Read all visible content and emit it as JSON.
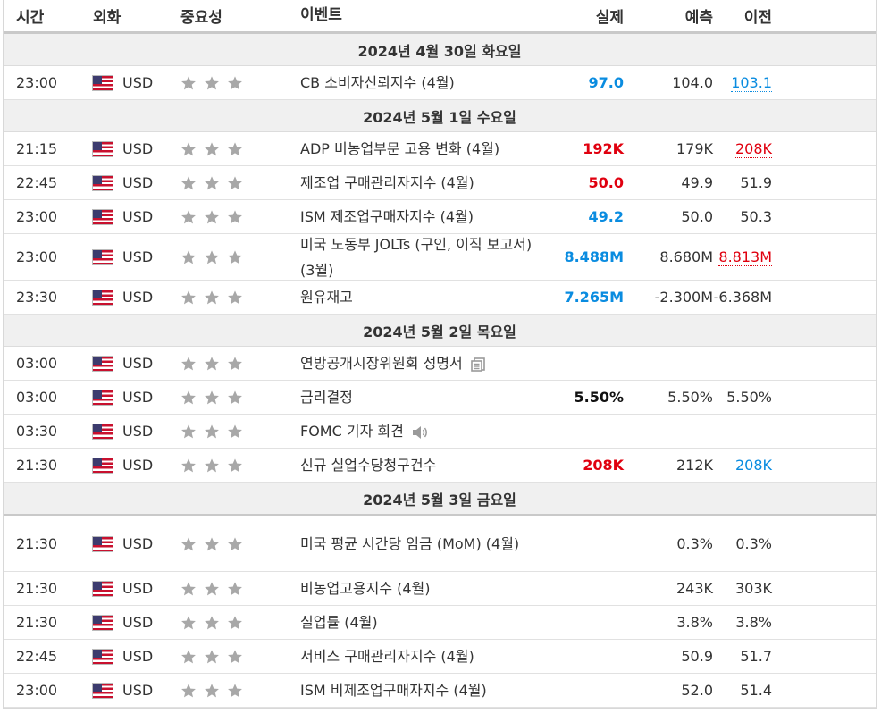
{
  "header": {
    "time": "시간",
    "currency": "외화",
    "importance": "중요성",
    "event": "이벤트",
    "actual": "실제",
    "forecast": "예측",
    "previous": "이전"
  },
  "colors": {
    "positive": "#0a8ce0",
    "negative": "#e0000f",
    "star": "#a8a8a8"
  },
  "groups": [
    {
      "date": "2024년 4월 30일 화요일",
      "events": [
        {
          "time": "23:00",
          "currency": "USD",
          "stars": 3,
          "event": "CB 소비자신뢰지수 (4월)",
          "actual": "97.0",
          "actual_style": "blue",
          "forecast": "104.0",
          "previous": "103.1",
          "previous_style": "prev-blue",
          "icon": ""
        }
      ]
    },
    {
      "date": "2024년 5월 1일 수요일",
      "events": [
        {
          "time": "21:15",
          "currency": "USD",
          "stars": 3,
          "event": "ADP 비농업부문 고용 변화 (4월)",
          "actual": "192K",
          "actual_style": "red",
          "forecast": "179K",
          "previous": "208K",
          "previous_style": "prev-red",
          "icon": ""
        },
        {
          "time": "22:45",
          "currency": "USD",
          "stars": 3,
          "event": "제조업 구매관리자지수 (4월)",
          "actual": "50.0",
          "actual_style": "red",
          "forecast": "49.9",
          "previous": "51.9",
          "previous_style": "",
          "icon": ""
        },
        {
          "time": "23:00",
          "currency": "USD",
          "stars": 3,
          "event": "ISM 제조업구매자지수 (4월)",
          "actual": "49.2",
          "actual_style": "blue",
          "forecast": "50.0",
          "previous": "50.3",
          "previous_style": "",
          "icon": ""
        },
        {
          "time": "23:00",
          "currency": "USD",
          "stars": 3,
          "event": "미국 노동부 JOLTs (구인, 이직 보고서) (3월)",
          "actual": "8.488M",
          "actual_style": "blue",
          "forecast": "8.680M",
          "previous": "8.813M",
          "previous_style": "prev-red",
          "icon": ""
        },
        {
          "time": "23:30",
          "currency": "USD",
          "stars": 3,
          "event": "원유재고",
          "actual": "7.265M",
          "actual_style": "blue",
          "forecast": "-2.300M",
          "previous": "-6.368M",
          "previous_style": "",
          "icon": ""
        }
      ]
    },
    {
      "date": "2024년 5월 2일 목요일",
      "events": [
        {
          "time": "03:00",
          "currency": "USD",
          "stars": 3,
          "event": "연방공개시장위원회 성명서",
          "actual": "",
          "actual_style": "",
          "forecast": "",
          "previous": "",
          "previous_style": "",
          "icon": "document-icon"
        },
        {
          "time": "03:00",
          "currency": "USD",
          "stars": 3,
          "event": "금리결정",
          "actual": "5.50%",
          "actual_style": "black",
          "forecast": "5.50%",
          "previous": "5.50%",
          "previous_style": "",
          "icon": ""
        },
        {
          "time": "03:30",
          "currency": "USD",
          "stars": 3,
          "event": "FOMC 기자 회견",
          "actual": "",
          "actual_style": "",
          "forecast": "",
          "previous": "",
          "previous_style": "",
          "icon": "speaker-icon"
        },
        {
          "time": "21:30",
          "currency": "USD",
          "stars": 3,
          "event": "신규 실업수당청구건수",
          "actual": "208K",
          "actual_style": "red",
          "forecast": "212K",
          "previous": "208K",
          "previous_style": "prev-blue",
          "icon": ""
        }
      ]
    },
    {
      "date": "2024년 5월 3일 금요일",
      "events": [
        {
          "time": "21:30",
          "currency": "USD",
          "stars": 3,
          "event": "미국 평균 시간당 임금 (MoM) (4월)",
          "actual": "",
          "actual_style": "",
          "forecast": "0.3%",
          "previous": "0.3%",
          "previous_style": "",
          "icon": ""
        },
        {
          "time": "21:30",
          "currency": "USD",
          "stars": 3,
          "event": "비농업고용지수 (4월)",
          "actual": "",
          "actual_style": "",
          "forecast": "243K",
          "previous": "303K",
          "previous_style": "",
          "icon": ""
        },
        {
          "time": "21:30",
          "currency": "USD",
          "stars": 3,
          "event": "실업률 (4월)",
          "actual": "",
          "actual_style": "",
          "forecast": "3.8%",
          "previous": "3.8%",
          "previous_style": "",
          "icon": ""
        },
        {
          "time": "22:45",
          "currency": "USD",
          "stars": 3,
          "event": "서비스 구매관리자지수 (4월)",
          "actual": "",
          "actual_style": "",
          "forecast": "50.9",
          "previous": "51.7",
          "previous_style": "",
          "icon": ""
        },
        {
          "time": "23:00",
          "currency": "USD",
          "stars": 3,
          "event": "ISM 비제조업구매자지수 (4월)",
          "actual": "",
          "actual_style": "",
          "forecast": "52.0",
          "previous": "51.4",
          "previous_style": "",
          "icon": ""
        }
      ]
    }
  ]
}
